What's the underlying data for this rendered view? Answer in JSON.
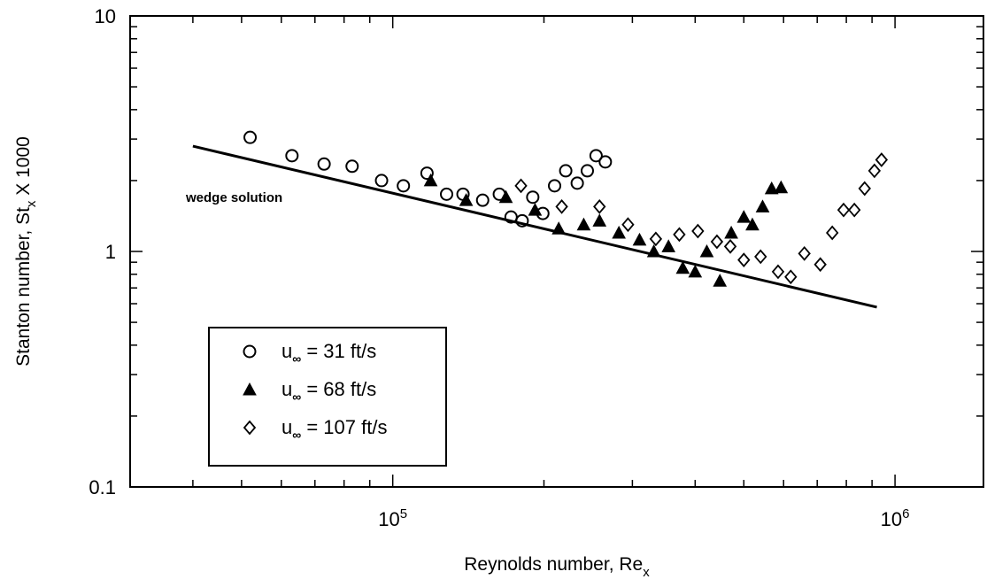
{
  "chart_data": {
    "type": "scatter",
    "xscale": "log",
    "yscale": "log",
    "xlim": [
      30000,
      1500000
    ],
    "ylim": [
      0.1,
      10
    ],
    "xlabel": {
      "main": "Reynolds number, Re",
      "sub": "x"
    },
    "ylabel": {
      "main": "Stanton number, St",
      "sub": "x",
      "suffix": " X 1000"
    },
    "x_tick_labels": [
      {
        "value": 100000,
        "base": "10",
        "exp": "5"
      },
      {
        "value": 1000000,
        "base": "10",
        "exp": "6"
      }
    ],
    "y_tick_labels": [
      {
        "value": 10,
        "label": "10"
      },
      {
        "value": 1,
        "label": "1"
      },
      {
        "value": 0.1,
        "label": "0.1"
      }
    ],
    "grid": false,
    "legend_position": "bottom-left",
    "line": {
      "label": "wedge solution",
      "points": [
        [
          40000,
          2.8
        ],
        [
          920000,
          0.58
        ]
      ]
    },
    "series": [
      {
        "name": "u∞ = 31 ft/s",
        "name_prefix": "u",
        "name_sub": "∞",
        "name_rest": " = 31 ft/s",
        "marker": "circle",
        "points": [
          [
            52000,
            3.05
          ],
          [
            63000,
            2.55
          ],
          [
            73000,
            2.35
          ],
          [
            83000,
            2.3
          ],
          [
            95000,
            2.0
          ],
          [
            105000,
            1.9
          ],
          [
            117000,
            2.15
          ],
          [
            128000,
            1.75
          ],
          [
            138000,
            1.75
          ],
          [
            151000,
            1.65
          ],
          [
            163000,
            1.75
          ],
          [
            172000,
            1.4
          ],
          [
            181000,
            1.35
          ],
          [
            190000,
            1.7
          ],
          [
            199000,
            1.45
          ],
          [
            210000,
            1.9
          ],
          [
            221000,
            2.2
          ],
          [
            233000,
            1.95
          ],
          [
            244000,
            2.2
          ],
          [
            254000,
            2.55
          ],
          [
            265000,
            2.4
          ]
        ]
      },
      {
        "name": "u∞ = 68 ft/s",
        "name_prefix": "u",
        "name_sub": "∞",
        "name_rest": " = 68 ft/s",
        "marker": "triangle",
        "points": [
          [
            119000,
            2.0
          ],
          [
            140000,
            1.65
          ],
          [
            168000,
            1.7
          ],
          [
            192000,
            1.5
          ],
          [
            214000,
            1.25
          ],
          [
            240000,
            1.3
          ],
          [
            258000,
            1.35
          ],
          [
            282000,
            1.2
          ],
          [
            310000,
            1.12
          ],
          [
            331000,
            1.0
          ],
          [
            354000,
            1.05
          ],
          [
            378000,
            0.85
          ],
          [
            400000,
            0.82
          ],
          [
            422000,
            1.0
          ],
          [
            448000,
            0.75
          ],
          [
            472000,
            1.2
          ],
          [
            500000,
            1.4
          ],
          [
            520000,
            1.3
          ],
          [
            545000,
            1.55
          ],
          [
            568000,
            1.85
          ],
          [
            593000,
            1.87
          ]
        ]
      },
      {
        "name": "u∞ = 107 ft/s",
        "name_prefix": "u",
        "name_sub": "∞",
        "name_rest": " = 107 ft/s",
        "marker": "diamond",
        "points": [
          [
            180000,
            1.9
          ],
          [
            217000,
            1.55
          ],
          [
            258000,
            1.55
          ],
          [
            294000,
            1.3
          ],
          [
            334000,
            1.13
          ],
          [
            372000,
            1.18
          ],
          [
            405000,
            1.22
          ],
          [
            442000,
            1.1
          ],
          [
            470000,
            1.05
          ],
          [
            500000,
            0.92
          ],
          [
            540000,
            0.95
          ],
          [
            585000,
            0.82
          ],
          [
            620000,
            0.78
          ],
          [
            660000,
            0.98
          ],
          [
            710000,
            0.88
          ],
          [
            750000,
            1.2
          ],
          [
            790000,
            1.5
          ],
          [
            830000,
            1.5
          ],
          [
            870000,
            1.85
          ],
          [
            910000,
            2.2
          ],
          [
            940000,
            2.45
          ]
        ]
      }
    ]
  }
}
